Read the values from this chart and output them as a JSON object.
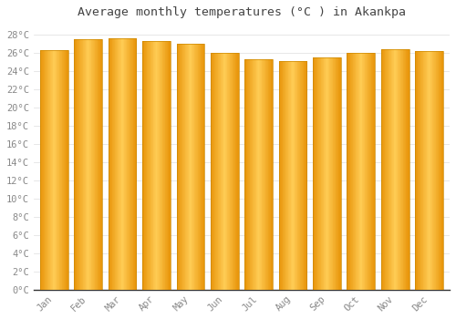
{
  "title": "Average monthly temperatures (°C ) in Akankpa",
  "months": [
    "Jan",
    "Feb",
    "Mar",
    "Apr",
    "May",
    "Jun",
    "Jul",
    "Aug",
    "Sep",
    "Oct",
    "Nov",
    "Dec"
  ],
  "values": [
    26.3,
    27.5,
    27.6,
    27.3,
    27.0,
    26.0,
    25.3,
    25.1,
    25.5,
    26.0,
    26.4,
    26.2
  ],
  "ylim": [
    0,
    29
  ],
  "yticks": [
    0,
    2,
    4,
    6,
    8,
    10,
    12,
    14,
    16,
    18,
    20,
    22,
    24,
    26,
    28
  ],
  "bar_color_center": "#FFBB33",
  "bar_color_edge": "#E8950A",
  "background_color": "#FFFFFF",
  "plot_bg_color": "#FFFFFF",
  "grid_color": "#DDDDDD",
  "title_fontsize": 9.5,
  "tick_fontsize": 7.5,
  "title_color": "#444444",
  "tick_color": "#888888",
  "bar_width": 0.82
}
